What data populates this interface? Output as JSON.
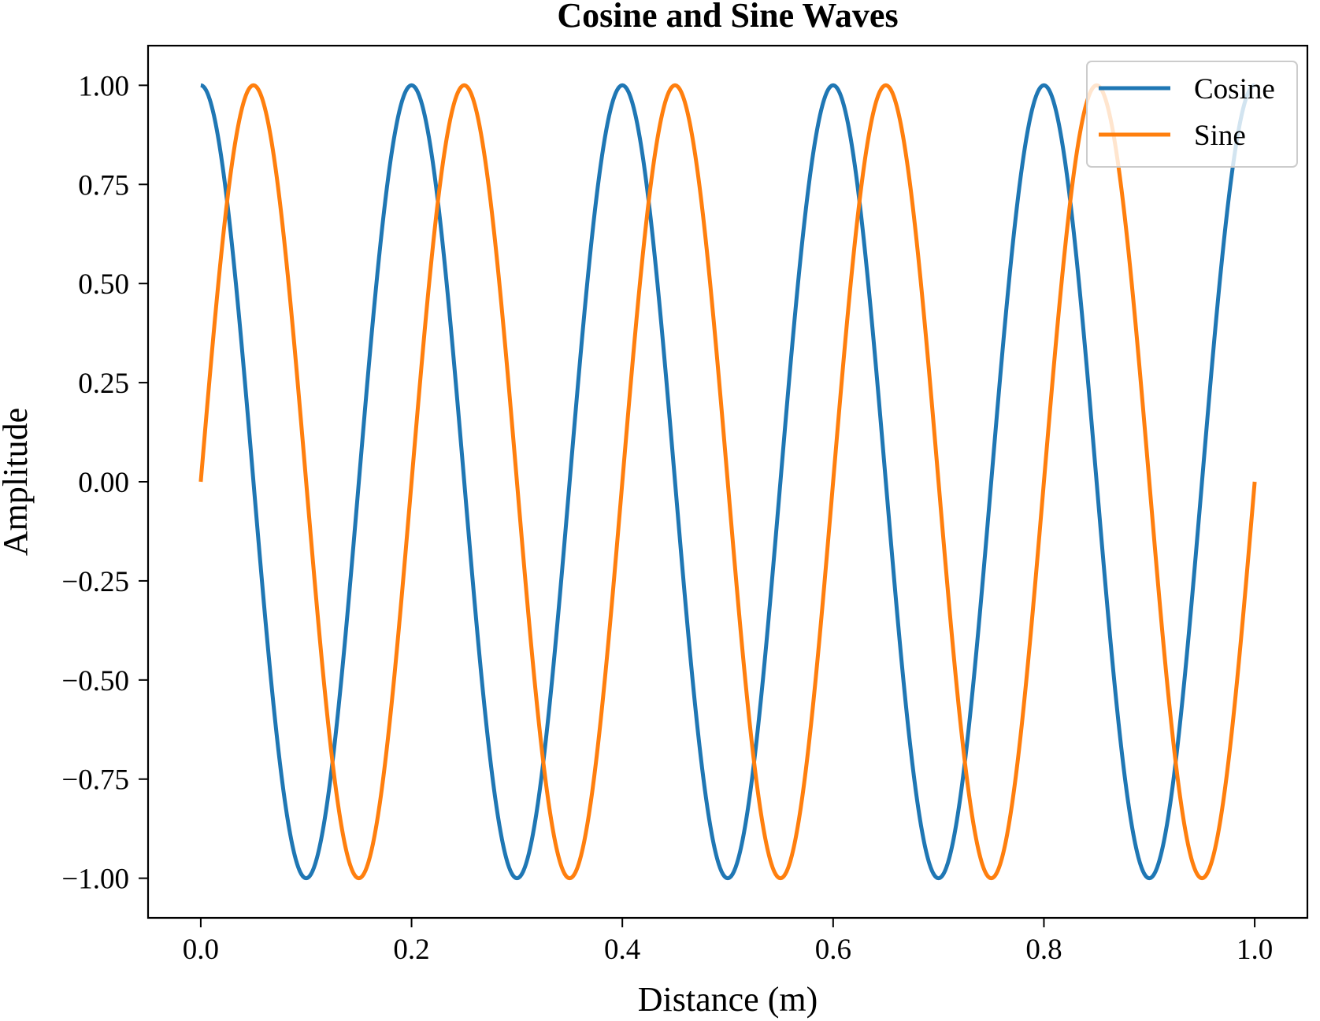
{
  "chart_data": {
    "type": "line",
    "title": "Cosine and Sine Waves",
    "xlabel": "Distance (m)",
    "ylabel": "Amplitude",
    "xlim": [
      -0.05,
      1.05
    ],
    "ylim": [
      -1.1,
      1.1
    ],
    "x_range": [
      0,
      1
    ],
    "xticks": [
      0.0,
      0.2,
      0.4,
      0.6,
      0.8,
      1.0
    ],
    "xtick_labels": [
      "0.0",
      "0.2",
      "0.4",
      "0.6",
      "0.8",
      "1.0"
    ],
    "yticks": [
      1.0,
      0.75,
      0.5,
      0.25,
      0.0,
      -0.25,
      -0.5,
      -0.75,
      -1.0
    ],
    "ytick_labels": [
      "1.00",
      "0.75",
      "0.50",
      "0.25",
      "0.00",
      "−0.25",
      "−0.50",
      "−0.75",
      "−1.00"
    ],
    "grid": false,
    "legend_position": "top-right",
    "series": [
      {
        "name": "Cosine",
        "function": "cos",
        "frequency_hz_per_m": 5,
        "color": "#1f77b4",
        "x": [
          0.0,
          0.1,
          0.2,
          0.3,
          0.4,
          0.5,
          0.6,
          0.7,
          0.8,
          0.9,
          1.0
        ],
        "y": [
          1.0,
          -1.0,
          1.0,
          -1.0,
          1.0,
          -1.0,
          1.0,
          -1.0,
          1.0,
          -1.0,
          1.0
        ]
      },
      {
        "name": "Sine",
        "function": "sin",
        "frequency_hz_per_m": 5,
        "color": "#ff7f0e",
        "x": [
          0.0,
          0.05,
          0.15,
          0.25,
          0.35,
          0.45,
          0.55,
          0.65,
          0.75,
          0.85,
          0.95,
          1.0
        ],
        "y": [
          0.0,
          1.0,
          -1.0,
          1.0,
          -1.0,
          1.0,
          -1.0,
          1.0,
          -1.0,
          1.0,
          -1.0,
          0.0
        ]
      }
    ]
  }
}
